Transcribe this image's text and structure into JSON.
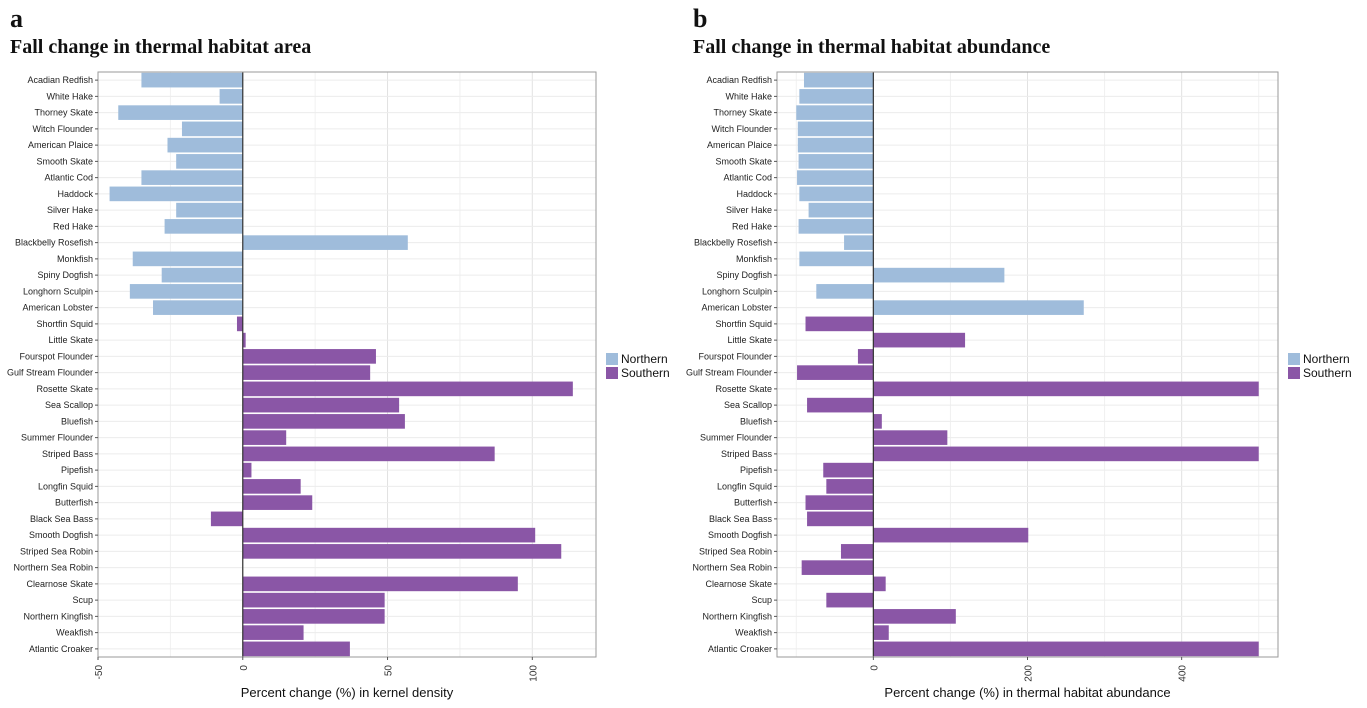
{
  "panels": [
    {
      "letter": "a",
      "title": "Fall change in thermal habitat area",
      "chart_data": {
        "type": "bar",
        "orientation": "horizontal",
        "xlabel": "Percent change (%) in kernel density",
        "ylabel": "",
        "xlim": [
          -50,
          122
        ],
        "xticks": [
          -50,
          0,
          50,
          100
        ],
        "grid": true,
        "legend_position": "right",
        "legend": [
          {
            "name": "Northern",
            "color": "#9fbcdb"
          },
          {
            "name": "Southern",
            "color": "#8a56a6"
          }
        ],
        "categories": [
          "Acadian Redfish",
          "White Hake",
          "Thorney Skate",
          "Witch Flounder",
          "American Plaice",
          "Smooth Skate",
          "Atlantic Cod",
          "Haddock",
          "Silver Hake",
          "Red Hake",
          "Blackbelly Rosefish",
          "Monkfish",
          "Spiny Dogfish",
          "Longhorn Sculpin",
          "American Lobster",
          "Shortfin Squid",
          "Little Skate",
          "Fourspot Flounder",
          "Gulf Stream Flounder",
          "Rosette Skate",
          "Sea Scallop",
          "Bluefish",
          "Summer Flounder",
          "Striped Bass",
          "Pipefish",
          "Longfin Squid",
          "Butterfish",
          "Black Sea Bass",
          "Smooth Dogfish",
          "Striped Sea Robin",
          "Northern Sea Robin",
          "Clearnose Skate",
          "Scup",
          "Northern Kingfish",
          "Weakfish",
          "Atlantic Croaker"
        ],
        "groups": [
          "Northern",
          "Northern",
          "Northern",
          "Northern",
          "Northern",
          "Northern",
          "Northern",
          "Northern",
          "Northern",
          "Northern",
          "Northern",
          "Northern",
          "Northern",
          "Northern",
          "Northern",
          "Southern",
          "Southern",
          "Southern",
          "Southern",
          "Southern",
          "Southern",
          "Southern",
          "Southern",
          "Southern",
          "Southern",
          "Southern",
          "Southern",
          "Southern",
          "Southern",
          "Southern",
          "Southern",
          "Southern",
          "Southern",
          "Southern",
          "Southern",
          "Southern"
        ],
        "values": [
          -35,
          -8,
          -43,
          -21,
          -26,
          -23,
          -35,
          -46,
          -23,
          -27,
          57,
          -38,
          -28,
          -39,
          -31,
          -2,
          1,
          46,
          44,
          114,
          54,
          56,
          15,
          87,
          3,
          20,
          24,
          -11,
          101,
          110,
          0,
          95,
          49,
          49,
          21,
          37
        ]
      }
    },
    {
      "letter": "b",
      "title": "Fall change in thermal habitat abundance",
      "chart_data": {
        "type": "bar",
        "orientation": "horizontal",
        "xlabel": "Percent change (%) in thermal habitat abundance",
        "ylabel": "",
        "xlim": [
          -125,
          525
        ],
        "xticks": [
          0,
          200,
          400
        ],
        "grid": true,
        "legend_position": "right",
        "legend": [
          {
            "name": "Northern",
            "color": "#9fbcdb"
          },
          {
            "name": "Southern",
            "color": "#8a56a6"
          }
        ],
        "categories": [
          "Acadian Redfish",
          "White Hake",
          "Thorney Skate",
          "Witch Flounder",
          "American Plaice",
          "Smooth Skate",
          "Atlantic Cod",
          "Haddock",
          "Silver Hake",
          "Red Hake",
          "Blackbelly Rosefish",
          "Monkfish",
          "Spiny Dogfish",
          "Longhorn Sculpin",
          "American Lobster",
          "Shortfin Squid",
          "Little Skate",
          "Fourspot Flounder",
          "Gulf Stream Flounder",
          "Rosette Skate",
          "Sea Scallop",
          "Bluefish",
          "Summer Flounder",
          "Striped Bass",
          "Pipefish",
          "Longfin Squid",
          "Butterfish",
          "Black Sea Bass",
          "Smooth Dogfish",
          "Striped Sea Robin",
          "Northern Sea Robin",
          "Clearnose Skate",
          "Scup",
          "Northern Kingfish",
          "Weakfish",
          "Atlantic Croaker"
        ],
        "groups": [
          "Northern",
          "Northern",
          "Northern",
          "Northern",
          "Northern",
          "Northern",
          "Northern",
          "Northern",
          "Northern",
          "Northern",
          "Northern",
          "Northern",
          "Northern",
          "Northern",
          "Northern",
          "Southern",
          "Southern",
          "Southern",
          "Southern",
          "Southern",
          "Southern",
          "Southern",
          "Southern",
          "Southern",
          "Southern",
          "Southern",
          "Southern",
          "Southern",
          "Southern",
          "Southern",
          "Southern",
          "Southern",
          "Southern",
          "Southern",
          "Southern",
          "Southern"
        ],
        "values": [
          -90,
          -96,
          -100,
          -98,
          -98,
          -97,
          -99,
          -96,
          -84,
          -97,
          -38,
          -96,
          170,
          -74,
          273,
          -88,
          119,
          -20,
          -99,
          500,
          -86,
          11,
          96,
          500,
          -65,
          -61,
          -88,
          -86,
          201,
          -42,
          -93,
          16,
          -61,
          107,
          20,
          500
        ]
      }
    }
  ]
}
